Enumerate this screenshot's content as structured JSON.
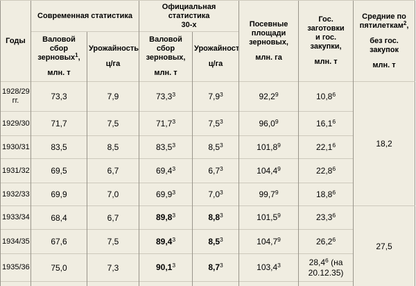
{
  "chart_data": {
    "type": "table",
    "columns": [
      "Годы",
      "Современная статистика — Валовой сбор зерновых¹, млн. т",
      "Современная статистика — Урожайность¹, ц/га",
      "Официальная статистика 30-х — Валовой сбор зерновых, млн. т",
      "Официальная статистика 30-х — Урожайность, ц/га",
      "Посевные площади зерновых, млн. га",
      "Гос. заготовки и гос. закупки, млн. т",
      "Средние по пятилеткам², без гос. закупок, млн. т"
    ],
    "rows": [
      [
        "1928/29 гг.",
        "73,3",
        "7,9",
        "73,3³",
        "7,9³",
        "92,2⁹",
        "10,8⁶",
        ""
      ],
      [
        "1929/30",
        "71,7",
        "7,5",
        "71,7³",
        "7,5³",
        "96,0⁹",
        "16,1⁶",
        ""
      ],
      [
        "1930/31",
        "83,5",
        "8,5",
        "83,5³",
        "8,5³",
        "101,8⁹",
        "22,1⁶",
        "18,2"
      ],
      [
        "1931/32",
        "69,5",
        "6,7",
        "69,4³",
        "6,7³",
        "104,4⁹",
        "22,8⁶",
        ""
      ],
      [
        "1932/33",
        "69,9",
        "7,0",
        "69,9³",
        "7,0³",
        "99,7⁹",
        "18,8⁶",
        ""
      ],
      [
        "1933/34",
        "68,4",
        "6,7",
        "89,8³",
        "8,8³",
        "101,5⁹",
        "23,3⁶",
        ""
      ],
      [
        "1934/35",
        "67,6",
        "7,5",
        "89,4³",
        "8,5³",
        "104,7⁹",
        "26,2⁶",
        ""
      ],
      [
        "1935/36",
        "75,0",
        "7,3",
        "90,1³",
        "8,7³",
        "103,4³",
        "28,4⁶ (на 20.12.35)",
        "27,5"
      ]
    ],
    "merged_cells_last_column": [
      {
        "value": "18,2",
        "covers_rows": "1928/29–1932/33"
      },
      {
        "value": "27,5",
        "covers_rows": "1933/34–1935/36"
      }
    ],
    "bold_values_rows": [
      "1933/34",
      "1934/35",
      "1935/36"
    ]
  },
  "table": {
    "header": {
      "years": "Годы",
      "modern_group": "Современная статистика",
      "official_group_lines": [
        "Официальная статистика",
        "30-х"
      ],
      "modern_gross": {
        "title": "Валовой сбор зерновых",
        "sup": "1",
        "suffix": ",",
        "unit": "млн. т"
      },
      "modern_yield": {
        "title": "Урожайность",
        "sup": "1",
        "suffix": "",
        "unit": "ц/га"
      },
      "official_gross": {
        "title": "Валовой сбор зерновых",
        "sup": "",
        "suffix": ",",
        "unit": "млн. т"
      },
      "official_yield": {
        "title": "Урожайность",
        "sup": "",
        "suffix": "",
        "unit": "ц/га"
      },
      "area": {
        "lines": [
          "Посевные",
          "площади",
          "зерновых,"
        ],
        "unit": "млн. га"
      },
      "procurement": {
        "lines": [
          "Гос. заготовки",
          "и гос. закупки,"
        ],
        "unit": "млн. т"
      },
      "averages": {
        "title": "Средние по пятилеткам",
        "sup": "2",
        "suffix": ",",
        "line2": "без гос. закупок",
        "unit": "млн. т"
      }
    },
    "rows": [
      {
        "year": "1928/29 гг.",
        "cells": [
          {
            "v": "73,3"
          },
          {
            "v": "7,9"
          },
          {
            "v": "73,3",
            "s": "3"
          },
          {
            "v": "7,9",
            "s": "3"
          },
          {
            "v": "92,2",
            "s": "9"
          },
          {
            "v": "10,8",
            "s": "6"
          }
        ]
      },
      {
        "year": "1929/30",
        "cells": [
          {
            "v": "71,7"
          },
          {
            "v": "7,5"
          },
          {
            "v": "71,7",
            "s": "3"
          },
          {
            "v": "7,5",
            "s": "3"
          },
          {
            "v": "96,0",
            "s": "9"
          },
          {
            "v": "16,1",
            "s": "6"
          }
        ]
      },
      {
        "year": "1930/31",
        "cells": [
          {
            "v": "83,5"
          },
          {
            "v": "8,5"
          },
          {
            "v": "83,5",
            "s": "3"
          },
          {
            "v": "8,5",
            "s": "3"
          },
          {
            "v": "101,8",
            "s": "9"
          },
          {
            "v": "22,1",
            "s": "6"
          }
        ]
      },
      {
        "year": "1931/32",
        "cells": [
          {
            "v": "69,5"
          },
          {
            "v": "6,7"
          },
          {
            "v": "69,4",
            "s": "3"
          },
          {
            "v": "6,7",
            "s": "3"
          },
          {
            "v": "104,4",
            "s": "9"
          },
          {
            "v": "22,8",
            "s": "6"
          }
        ]
      },
      {
        "year": "1932/33",
        "cells": [
          {
            "v": "69,9"
          },
          {
            "v": "7,0"
          },
          {
            "v": "69,9",
            "s": "3"
          },
          {
            "v": "7,0",
            "s": "3"
          },
          {
            "v": "99,7",
            "s": "9"
          },
          {
            "v": "18,8",
            "s": "6"
          }
        ]
      },
      {
        "year": "1933/34",
        "cells": [
          {
            "v": "68,4"
          },
          {
            "v": "6,7"
          },
          {
            "v": "89,8",
            "s": "3",
            "b": true
          },
          {
            "v": "8,8",
            "s": "3",
            "b": true
          },
          {
            "v": "101,5",
            "s": "9"
          },
          {
            "v": "23,3",
            "s": "6"
          }
        ]
      },
      {
        "year": "1934/35",
        "cells": [
          {
            "v": "67,6"
          },
          {
            "v": "7,5"
          },
          {
            "v": "89,4",
            "s": "3",
            "b": true
          },
          {
            "v": "8,5",
            "s": "3",
            "b": true
          },
          {
            "v": "104,7",
            "s": "9"
          },
          {
            "v": "26,2",
            "s": "6"
          }
        ]
      },
      {
        "year": "1935/36",
        "cells": [
          {
            "v": "75,0"
          },
          {
            "v": "7,3"
          },
          {
            "v": "90,1",
            "s": "3",
            "b": true
          },
          {
            "v": "8,7",
            "s": "3",
            "b": true
          },
          {
            "v": "103,4",
            "s": "3"
          },
          {
            "v": "28,4",
            "s": "6",
            "note": " (на 20.12.35)"
          }
        ]
      }
    ],
    "averages_cells": [
      {
        "v": "18,2"
      },
      {
        "v": "27,5"
      }
    ]
  },
  "colors": {
    "cell_background": "#f0ede1",
    "vertical_border": "#98948a",
    "horizontal_border": "#cdc9bc",
    "text": "#000000",
    "page_background": "#ffffff"
  }
}
